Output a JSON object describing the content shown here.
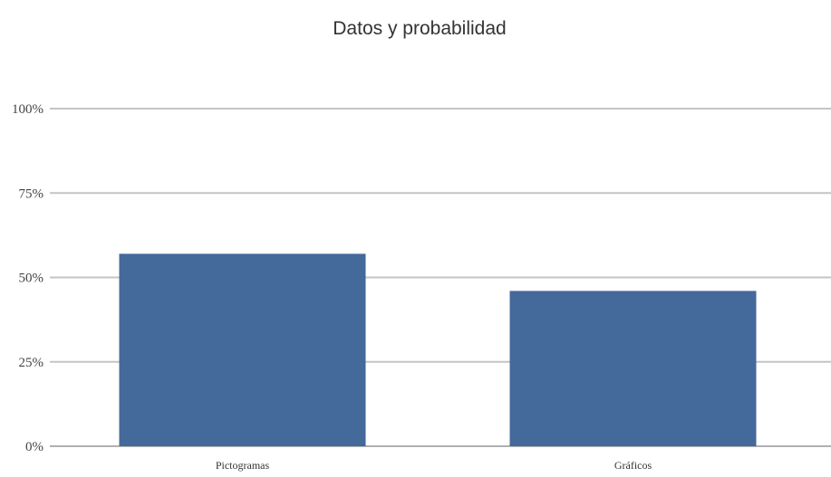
{
  "chart_data": {
    "type": "bar",
    "title": "Datos y probabilidad",
    "xlabel": "",
    "ylabel": "",
    "categories": [
      "Pictogramas",
      "Gráficos"
    ],
    "values": [
      57,
      46
    ],
    "ylim": [
      0,
      100
    ],
    "yticks": [
      0,
      25,
      50,
      75,
      100
    ],
    "ytick_labels": [
      "0%",
      "25%",
      "50%",
      "75%",
      "100%"
    ],
    "grid": true,
    "legend": "none",
    "bar_color": "#44699b",
    "grid_color": "#c4c4c4"
  }
}
